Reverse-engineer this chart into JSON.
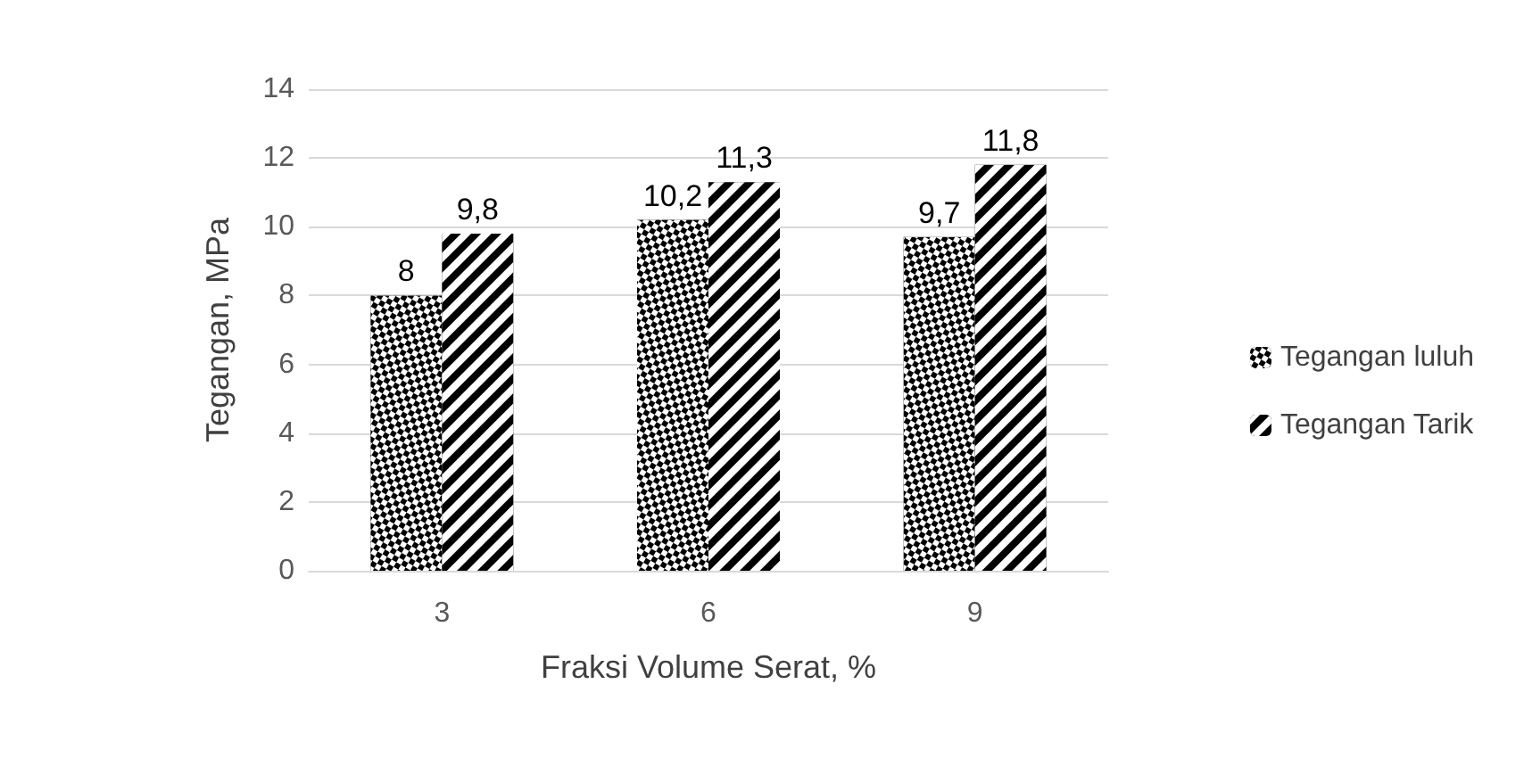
{
  "chart_data": {
    "type": "bar",
    "xlabel": "Fraksi Volume Serat, %",
    "ylabel": "Tegangan, MPa",
    "categories": [
      "3",
      "6",
      "9"
    ],
    "series": [
      {
        "name": "Tegangan luluh",
        "color": "#000000",
        "values": [
          8,
          10.2,
          9.7
        ],
        "value_labels": [
          "8",
          "10,2",
          "9,7"
        ]
      },
      {
        "name": "Tegangan Tarik",
        "color": "#000000",
        "values": [
          9.8,
          11.3,
          11.8
        ],
        "value_labels": [
          "9,8",
          "11,3",
          "11,8"
        ]
      }
    ],
    "ylim": [
      0,
      14
    ],
    "yticks": [
      0,
      2,
      4,
      6,
      8,
      10,
      12,
      14
    ],
    "grid": "y",
    "legend": "right"
  }
}
